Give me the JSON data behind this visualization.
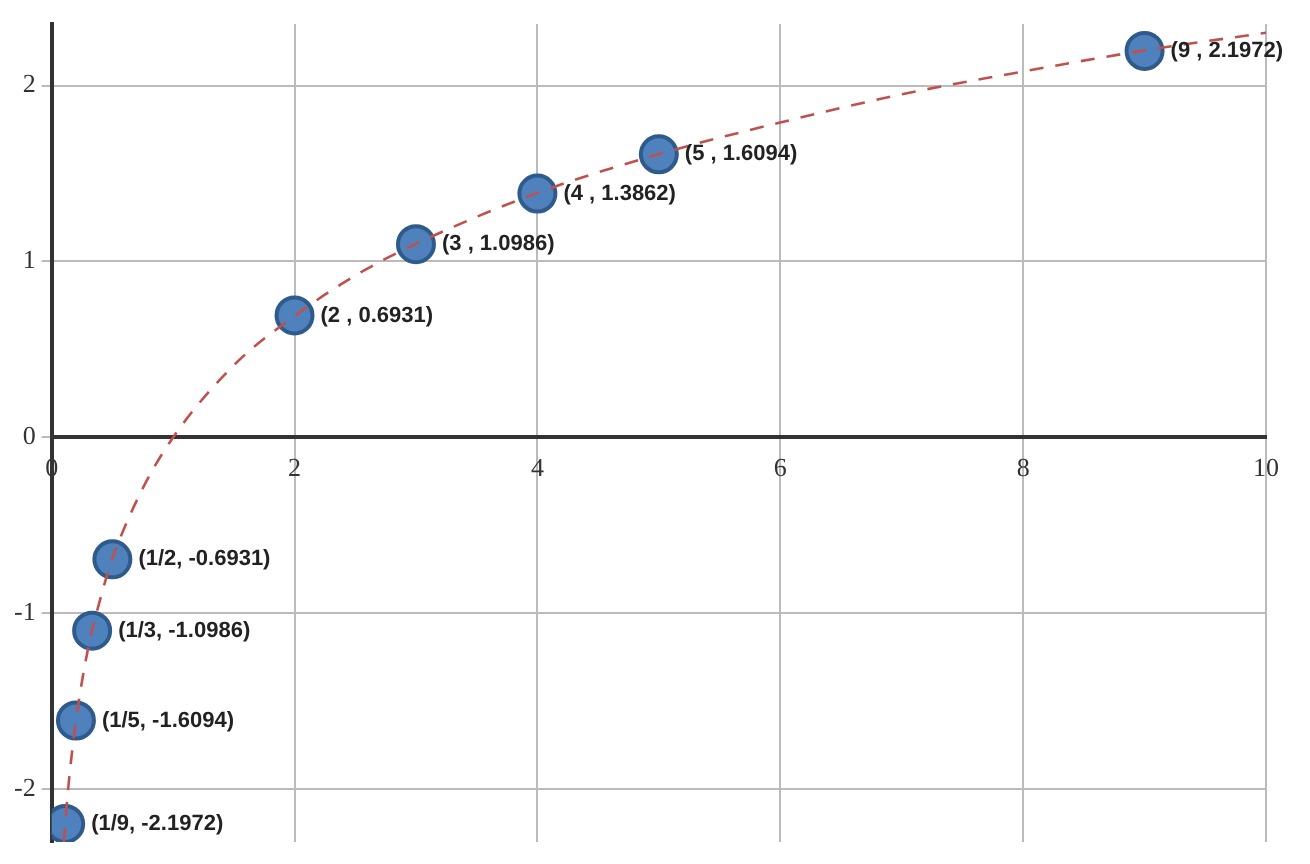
{
  "chart_data": {
    "type": "scatter",
    "series": [
      {
        "type": "line",
        "color": "#c0504d",
        "line_style": "dashed",
        "marker": "none",
        "x": [
          0.1,
          0.12,
          0.15,
          0.2,
          0.3,
          0.4,
          0.5,
          0.75,
          1,
          1.5,
          2,
          2.5,
          3,
          4,
          5,
          6,
          7,
          8,
          9,
          10
        ],
        "values": [
          -2.3,
          -2.12,
          -1.9,
          -1.61,
          -1.2,
          -0.92,
          -0.69,
          -0.29,
          0,
          0.41,
          0.69,
          0.92,
          1.1,
          1.39,
          1.61,
          1.79,
          1.95,
          2.08,
          2.2,
          2.3
        ]
      },
      {
        "color": "#4f81bd",
        "marker": "circle",
        "x": [
          0.1111,
          0.2,
          0.3333,
          0.5,
          2,
          3,
          4,
          5,
          9
        ],
        "values": [
          -2.1972,
          -1.6094,
          -1.0986,
          -0.6931,
          0.6931,
          1.0986,
          1.3862,
          1.6094,
          2.1972
        ],
        "value_labels": [
          "(1/9, -2.1972)",
          "(1/5, -1.6094)",
          "(1/3, -1.0986)",
          "(1/2, -0.6931)",
          "(2 , 0.6931)",
          "(3 , 1.0986)",
          "(4 , 1.3862)",
          "(5 , 1.6094)",
          "(9 , 2.1972)"
        ]
      }
    ],
    "xlim": [
      0,
      10
    ],
    "xticks": [
      0,
      2,
      4,
      6,
      8,
      10
    ],
    "ylim": [
      -2.3,
      2.35
    ],
    "yticks": [
      -2,
      -1,
      0,
      1,
      2
    ],
    "grid": true,
    "legend": false
  }
}
